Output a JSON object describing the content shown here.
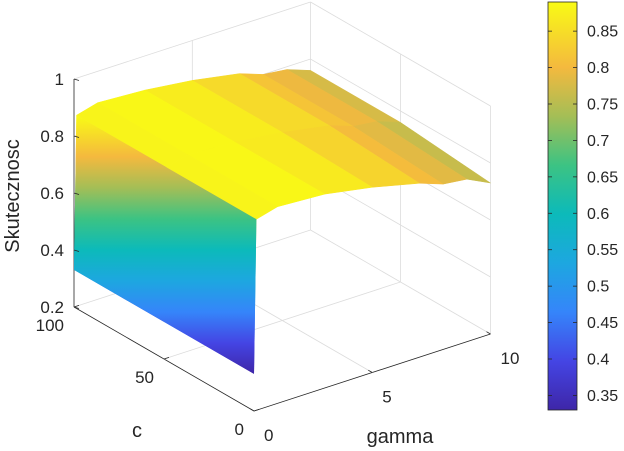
{
  "chart_data": {
    "type": "surface",
    "title": "",
    "xlabel": "gamma",
    "ylabel": "c",
    "zlabel": "Skutecznosc",
    "xlim": [
      0,
      10
    ],
    "ylim": [
      0,
      100
    ],
    "zlim": [
      0.2,
      1
    ],
    "xticks": [
      "0",
      "5",
      "10"
    ],
    "yticks": [
      "0",
      "50",
      "100"
    ],
    "zticks": [
      "0.2",
      "0.4",
      "0.6",
      "0.8",
      "1"
    ],
    "grid": true,
    "colormap": "parula",
    "colorbar": {
      "range": [
        0.33,
        0.89
      ],
      "ticks": [
        "0.35",
        "0.4",
        "0.45",
        "0.5",
        "0.55",
        "0.6",
        "0.65",
        "0.7",
        "0.75",
        "0.8",
        "0.85"
      ]
    },
    "gamma": [
      0,
      0.1,
      1,
      3,
      5,
      7,
      8,
      9,
      10
    ],
    "c": [
      0,
      50,
      100
    ],
    "z": [
      [
        0.33,
        0.87,
        0.89,
        0.88,
        0.85,
        0.81,
        0.78,
        0.77,
        0.73
      ],
      [
        0.33,
        0.87,
        0.89,
        0.88,
        0.86,
        0.83,
        0.8,
        0.79,
        0.76
      ],
      [
        0.33,
        0.87,
        0.89,
        0.88,
        0.86,
        0.83,
        0.8,
        0.79,
        0.76
      ]
    ]
  }
}
